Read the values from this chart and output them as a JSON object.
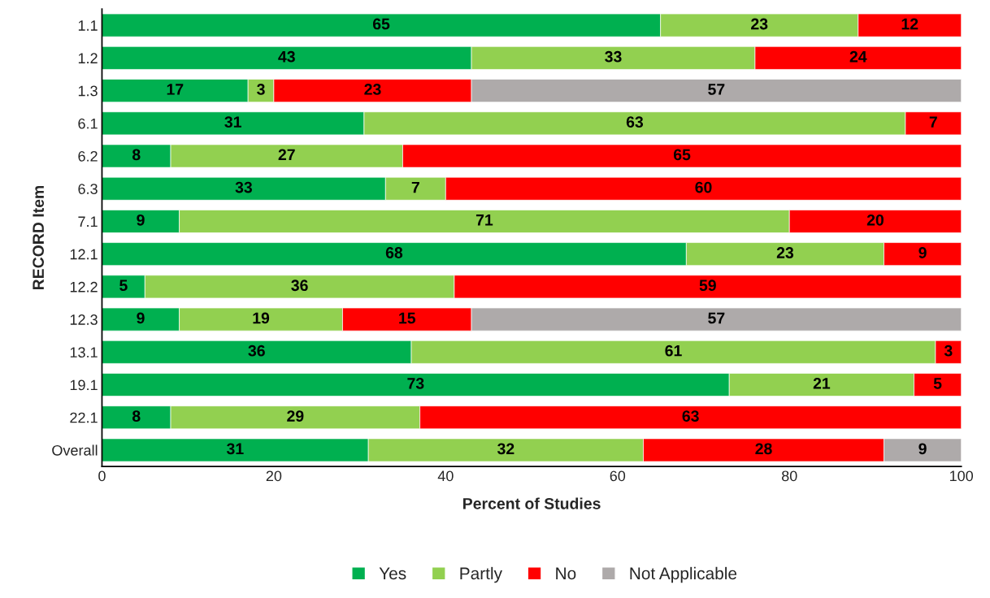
{
  "chart_data": {
    "type": "bar",
    "orientation": "horizontal",
    "stacked": true,
    "categories": [
      "1.1",
      "1.2",
      "1.3",
      "6.1",
      "6.2",
      "6.3",
      "7.1",
      "12.1",
      "12.2",
      "12.3",
      "13.1",
      "19.1",
      "22.1",
      "Overall"
    ],
    "xlabel": "Percent of Studies",
    "ylabel": "RECORD Item",
    "xlim": [
      0,
      100
    ],
    "xticks": [
      0,
      20,
      40,
      60,
      80,
      100
    ],
    "grid": false,
    "legend": "bottom",
    "series": [
      {
        "name": "Yes",
        "color": "#00b050",
        "values": [
          65,
          43,
          17,
          30.5,
          8,
          33,
          9,
          68,
          5,
          9,
          36,
          73,
          8,
          31
        ],
        "value_labels": [
          "65",
          "43",
          "17",
          "31",
          "8",
          "33",
          "9",
          "68",
          "5",
          "9",
          "36",
          "73",
          "8",
          "31"
        ]
      },
      {
        "name": "Partly",
        "color": "#92d050",
        "values": [
          23,
          33,
          3,
          63,
          27,
          7,
          71,
          23,
          36,
          19,
          61,
          21.5,
          29,
          32
        ],
        "value_labels": [
          "23",
          "33",
          "3",
          "63",
          "27",
          "7",
          "71",
          "23",
          "36",
          "19",
          "61",
          "21",
          "29",
          "32"
        ]
      },
      {
        "name": "No",
        "color": "#ff0000",
        "values": [
          12,
          24,
          23,
          6.5,
          65,
          60,
          20,
          9,
          59,
          15,
          3,
          5.5,
          63,
          28
        ],
        "value_labels": [
          "12",
          "24",
          "23",
          "7",
          "65",
          "60",
          "20",
          "9",
          "59",
          "15",
          "3",
          "5",
          "63",
          "28"
        ]
      },
      {
        "name": "Not Applicable",
        "color": "#aeaaaa",
        "values": [
          null,
          null,
          57,
          null,
          null,
          null,
          null,
          null,
          null,
          57,
          null,
          null,
          null,
          9
        ],
        "value_labels": [
          null,
          null,
          "57",
          null,
          null,
          null,
          null,
          null,
          null,
          "57",
          null,
          null,
          null,
          "9"
        ]
      }
    ]
  }
}
